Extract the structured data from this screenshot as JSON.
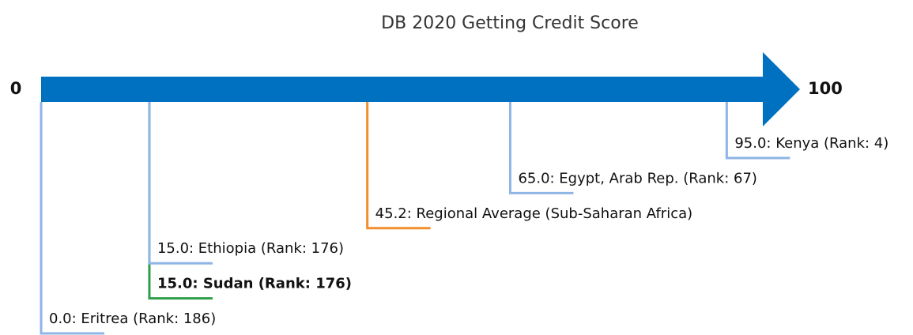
{
  "chart_data": {
    "type": "number-line",
    "title": "DB 2020 Getting Credit Score",
    "xlim": [
      0,
      100
    ],
    "xticks": [
      0,
      100
    ],
    "axis_color": "#0070c0",
    "values": [
      0,
      15,
      15,
      45.2,
      65,
      95
    ],
    "value_labels": [
      "0.0: Eritrea (Rank: 186)",
      "15.0: Sudan (Rank: 176)",
      "15.0: Ethiopia (Rank: 176)",
      "45.2: Regional Average (Sub-Saharan Africa)",
      "65.0: Egypt, Arab Rep. (Rank: 67)",
      "95.0: Kenya (Rank: 4)"
    ],
    "colors": [
      "#8fb4e6",
      "#2e9e4a",
      "#8fb4e6",
      "#f28e2b",
      "#8fb4e6",
      "#8fb4e6"
    ],
    "bold": [
      false,
      true,
      false,
      false,
      false,
      false
    ]
  }
}
